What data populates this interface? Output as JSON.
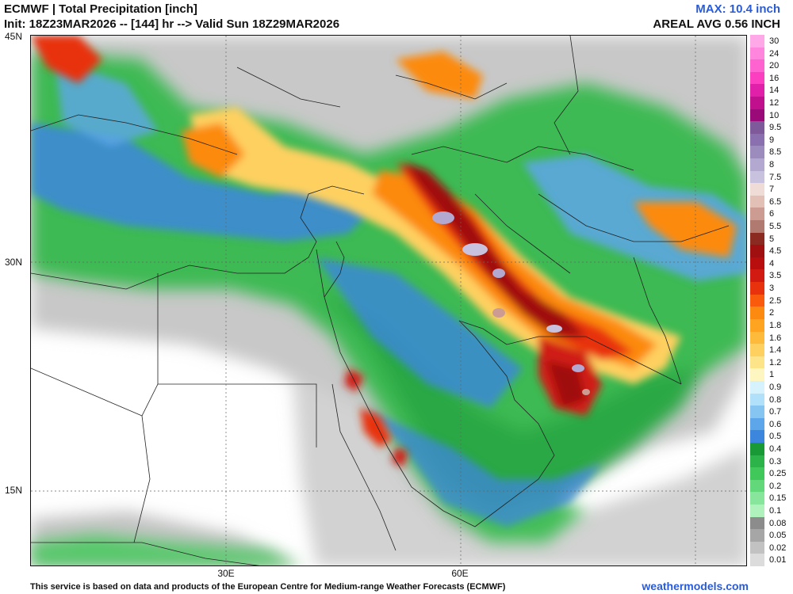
{
  "header": {
    "title": "ECMWF | Total Precipitation [inch]",
    "init": "Init: 18Z23MAR2026 -- [144] hr --> Valid Sun 18Z29MAR2026",
    "max": "MAX: 10.4 inch",
    "areal": "AREAL AVG 0.56 INCH"
  },
  "axes": {
    "lat_labels": [
      "45N",
      "30N",
      "15N"
    ],
    "lon_labels": [
      "30E",
      "60E"
    ]
  },
  "colorbar": {
    "levels": [
      "30",
      "24",
      "20",
      "16",
      "14",
      "12",
      "10",
      "9.5",
      "9",
      "8.5",
      "8",
      "7.5",
      "7",
      "6.5",
      "6",
      "5.5",
      "5",
      "4.5",
      "4",
      "3.5",
      "3",
      "2.5",
      "2",
      "1.8",
      "1.6",
      "1.4",
      "1.2",
      "1",
      "0.9",
      "0.8",
      "0.7",
      "0.6",
      "0.5",
      "0.4",
      "0.3",
      "0.25",
      "0.2",
      "0.15",
      "0.1",
      "0.08",
      "0.05",
      "0.02",
      "0.01"
    ],
    "colors": [
      "#ffa8e8",
      "#ff86dc",
      "#ff63cf",
      "#fb3fc0",
      "#e020a8",
      "#c0108e",
      "#9a0a78",
      "#7e5a9a",
      "#8a70ae",
      "#9c8cbe",
      "#b2a8d0",
      "#c8c2de",
      "#efdcd6",
      "#e2c0b6",
      "#cc9c92",
      "#b07a70",
      "#8a2a20",
      "#a01010",
      "#b80e0e",
      "#d01a12",
      "#e8320e",
      "#fa5a0c",
      "#fc8a10",
      "#fea420",
      "#feba3a",
      "#fed060",
      "#fee488",
      "#fef6c0",
      "#d6f2fc",
      "#b0e0fa",
      "#86c4f2",
      "#5ea6ea",
      "#3c86de",
      "#1a9a36",
      "#2cb44a",
      "#40c85a",
      "#62d87a",
      "#88e69c",
      "#b0f2bc",
      "#8c8c8c",
      "#a6a6a6",
      "#c2c2c2",
      "#dcdcdc"
    ]
  },
  "footer": "This service is based on data and products of the European Centre for Medium-range Weather Forecasts (ECMWF)",
  "credit": "weathermodels.com"
}
